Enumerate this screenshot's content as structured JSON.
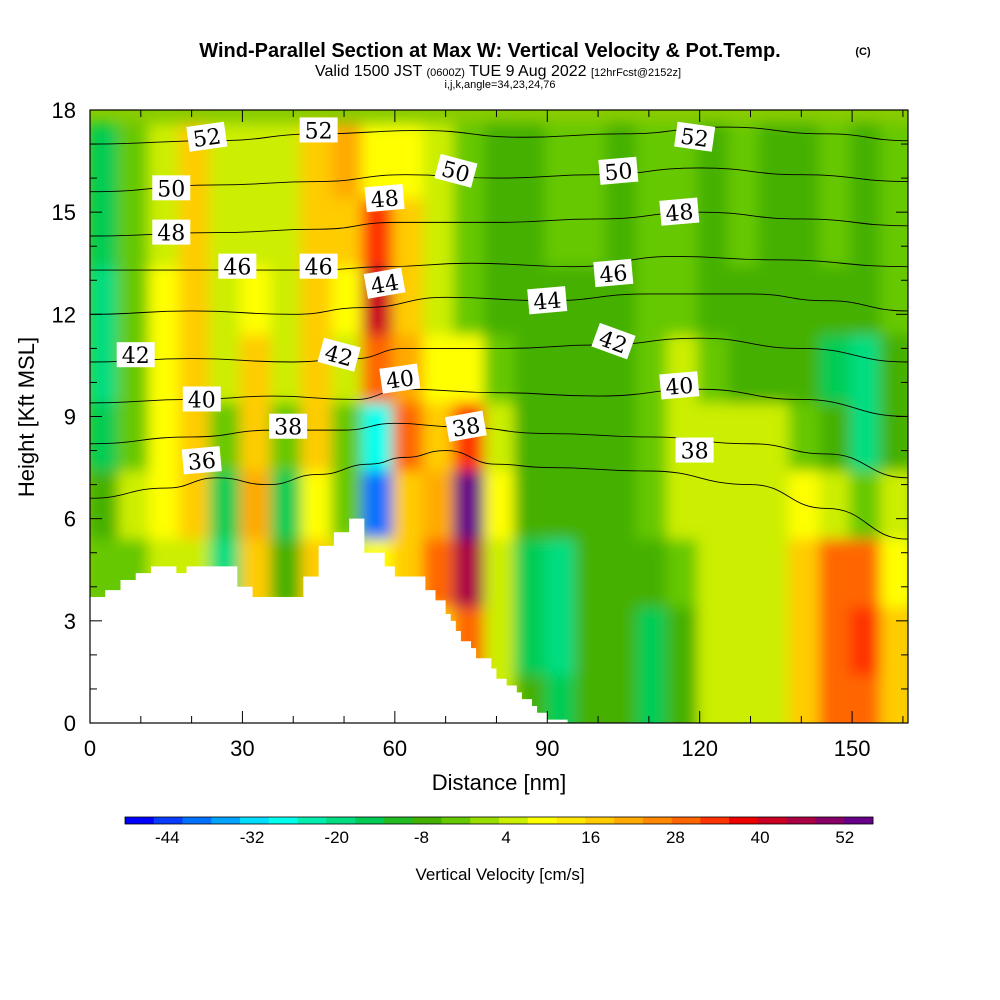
{
  "chart_data": {
    "type": "heatmap",
    "title": "Wind-Parallel Section at Max W: Vertical Velocity & Pot.Temp.",
    "title_suffix": "(C)",
    "subtitle_parts": [
      "Valid 1500 JST",
      "(0600Z)",
      "TUE 9 Aug 2022",
      "[12hrFcst@2152z]"
    ],
    "subtitle2": "i,j,k,angle=34,23,24,76",
    "xlabel": "Distance [nm]",
    "ylabel": "Height [Kft MSL]",
    "xlim": [
      0,
      161
    ],
    "ylim": [
      0,
      18
    ],
    "x_ticks": [
      "0",
      "30",
      "60",
      "90",
      "120",
      "150"
    ],
    "y_ticks": [
      "0",
      "3",
      "6",
      "9",
      "12",
      "15",
      "18"
    ],
    "grid": false,
    "colorbar": {
      "label": "Vertical Velocity [cm/s]",
      "tick_labels": [
        "-44",
        "-32",
        "-20",
        "-8",
        "4",
        "16",
        "28",
        "40",
        "52"
      ],
      "min": -50,
      "max": 56,
      "colors": [
        "#0000ff",
        "#0a3cff",
        "#0070ff",
        "#00a4ff",
        "#00ddff",
        "#00ffee",
        "#00eeb0",
        "#00dd80",
        "#00cc55",
        "#22bb22",
        "#44b000",
        "#66c800",
        "#99dd00",
        "#ccee00",
        "#ffff00",
        "#ffe800",
        "#ffcc00",
        "#ffaa00",
        "#ff8800",
        "#ff6600",
        "#ff3300",
        "#ee0000",
        "#cc0022",
        "#aa0044",
        "#880066",
        "#660088"
      ]
    },
    "heatmap_cells_x": [
      0,
      6,
      12,
      18,
      24,
      30,
      36,
      42,
      48,
      54,
      60,
      66,
      72,
      78,
      84,
      90,
      96,
      102,
      108,
      114,
      120,
      126,
      132,
      138,
      144,
      150,
      156
    ],
    "heatmap_cells_z": [
      0.5,
      2.5,
      4.5,
      6.5,
      8.5,
      10.5,
      12.5,
      14.5,
      16.5
    ],
    "vertical_velocity": [
      [
        4,
        4,
        4,
        4,
        4,
        4,
        4,
        4,
        4,
        4,
        4,
        4,
        16,
        4,
        -8,
        -14,
        -8,
        -8,
        -14,
        -8,
        4,
        4,
        4,
        16,
        28,
        28,
        16
      ],
      [
        4,
        4,
        4,
        4,
        4,
        4,
        4,
        4,
        4,
        4,
        4,
        16,
        28,
        4,
        -14,
        -20,
        -8,
        -8,
        -14,
        -8,
        4,
        4,
        4,
        16,
        28,
        34,
        16
      ],
      [
        -2,
        -2,
        4,
        4,
        -20,
        16,
        -8,
        16,
        4,
        10,
        16,
        28,
        46,
        4,
        -14,
        -20,
        -8,
        -8,
        -8,
        -2,
        4,
        4,
        4,
        16,
        28,
        28,
        10
      ],
      [
        -8,
        4,
        10,
        16,
        -14,
        22,
        -14,
        10,
        -2,
        -38,
        16,
        22,
        52,
        10,
        -8,
        -8,
        -8,
        -8,
        -2,
        4,
        4,
        4,
        4,
        10,
        4,
        -2,
        4
      ],
      [
        -14,
        -2,
        10,
        16,
        -2,
        16,
        -2,
        16,
        -2,
        -26,
        28,
        16,
        34,
        4,
        -8,
        -8,
        -8,
        -8,
        -2,
        4,
        4,
        4,
        4,
        -2,
        -8,
        -20,
        -8
      ],
      [
        -20,
        -2,
        10,
        16,
        4,
        16,
        4,
        16,
        4,
        28,
        22,
        10,
        10,
        -2,
        -8,
        -8,
        -8,
        -8,
        -2,
        4,
        -2,
        -8,
        -8,
        -8,
        -14,
        -20,
        -8
      ],
      [
        -20,
        -2,
        10,
        16,
        4,
        10,
        4,
        16,
        10,
        40,
        16,
        4,
        -2,
        -8,
        -8,
        -8,
        -8,
        -8,
        -2,
        -2,
        -8,
        -8,
        -8,
        -8,
        -8,
        -8,
        -2
      ],
      [
        -14,
        -2,
        4,
        16,
        4,
        4,
        4,
        16,
        16,
        34,
        16,
        4,
        -2,
        -8,
        -8,
        -2,
        -2,
        -8,
        -2,
        -2,
        -8,
        -2,
        -8,
        -8,
        -2,
        -8,
        -2
      ],
      [
        -14,
        -2,
        4,
        16,
        4,
        4,
        4,
        16,
        22,
        10,
        10,
        4,
        -2,
        -8,
        -8,
        -2,
        -2,
        -8,
        -2,
        -2,
        -8,
        -2,
        -8,
        -8,
        -2,
        -8,
        -2
      ]
    ],
    "terrain": {
      "x": [
        0,
        3,
        3,
        6,
        6,
        9,
        9,
        12,
        12,
        17,
        17,
        19,
        19,
        29,
        29,
        32,
        32,
        42,
        42,
        45,
        45,
        48,
        48,
        51,
        51,
        54,
        54,
        58,
        58,
        60,
        60,
        66,
        66,
        68,
        68,
        70,
        70,
        71,
        71,
        72,
        72,
        73,
        73,
        75,
        75,
        76,
        76,
        79,
        79,
        80,
        80,
        82,
        82,
        84,
        84,
        85,
        85,
        87,
        87,
        88,
        88,
        90,
        90,
        94,
        94,
        161
      ],
      "z": [
        3.7,
        3.7,
        3.9,
        3.9,
        4.2,
        4.2,
        4.4,
        4.4,
        4.6,
        4.6,
        4.4,
        4.4,
        4.6,
        4.6,
        4.0,
        4.0,
        3.7,
        3.7,
        4.3,
        4.3,
        5.2,
        5.2,
        5.6,
        5.6,
        6.0,
        6.0,
        5.0,
        5.0,
        4.6,
        4.6,
        4.3,
        4.3,
        3.9,
        3.9,
        3.6,
        3.6,
        3.2,
        3.2,
        3.0,
        3.0,
        2.7,
        2.7,
        2.4,
        2.4,
        2.2,
        2.2,
        1.9,
        1.9,
        1.6,
        1.6,
        1.3,
        1.3,
        1.1,
        1.1,
        0.9,
        0.9,
        0.7,
        0.7,
        0.5,
        0.5,
        0.3,
        0.3,
        0.1,
        0.1,
        0,
        0
      ]
    },
    "isentropes": [
      {
        "level": 36,
        "pts": [
          [
            0,
            6.6
          ],
          [
            15,
            6.9
          ],
          [
            25,
            7.2
          ],
          [
            35,
            7.0
          ],
          [
            45,
            7.3
          ],
          [
            55,
            7.6
          ],
          [
            62,
            7.8
          ],
          [
            70,
            8.0
          ],
          [
            80,
            7.6
          ],
          [
            90,
            7.5
          ],
          [
            110,
            7.4
          ],
          [
            130,
            7.0
          ],
          [
            145,
            6.3
          ],
          [
            161,
            5.4
          ]
        ]
      },
      {
        "level": 38,
        "pts": [
          [
            0,
            8.2
          ],
          [
            20,
            8.4
          ],
          [
            36,
            8.6
          ],
          [
            50,
            8.6
          ],
          [
            60,
            8.8
          ],
          [
            72,
            8.7
          ],
          [
            90,
            8.5
          ],
          [
            110,
            8.4
          ],
          [
            130,
            8.2
          ],
          [
            145,
            7.9
          ],
          [
            161,
            7.2
          ]
        ]
      },
      {
        "level": 40,
        "pts": [
          [
            0,
            9.4
          ],
          [
            20,
            9.5
          ],
          [
            36,
            9.6
          ],
          [
            52,
            9.5
          ],
          [
            62,
            9.8
          ],
          [
            80,
            9.7
          ],
          [
            100,
            9.6
          ],
          [
            120,
            9.8
          ],
          [
            140,
            9.5
          ],
          [
            161,
            9.0
          ]
        ]
      },
      {
        "level": 42,
        "pts": [
          [
            0,
            10.6
          ],
          [
            20,
            10.7
          ],
          [
            40,
            10.6
          ],
          [
            52,
            10.7
          ],
          [
            62,
            11.0
          ],
          [
            82,
            11.0
          ],
          [
            100,
            11.1
          ],
          [
            120,
            11.3
          ],
          [
            140,
            11.0
          ],
          [
            161,
            10.6
          ]
        ]
      },
      {
        "level": 44,
        "pts": [
          [
            0,
            12.0
          ],
          [
            20,
            12.1
          ],
          [
            40,
            12.0
          ],
          [
            54,
            12.2
          ],
          [
            70,
            12.5
          ],
          [
            90,
            12.4
          ],
          [
            110,
            12.6
          ],
          [
            130,
            12.6
          ],
          [
            145,
            12.4
          ],
          [
            161,
            12.1
          ]
        ]
      },
      {
        "level": 46,
        "pts": [
          [
            0,
            13.3
          ],
          [
            25,
            13.3
          ],
          [
            45,
            13.3
          ],
          [
            58,
            13.4
          ],
          [
            75,
            13.5
          ],
          [
            95,
            13.4
          ],
          [
            115,
            13.7
          ],
          [
            135,
            13.6
          ],
          [
            161,
            13.4
          ]
        ]
      },
      {
        "level": 48,
        "pts": [
          [
            0,
            14.3
          ],
          [
            25,
            14.4
          ],
          [
            45,
            14.5
          ],
          [
            60,
            14.7
          ],
          [
            80,
            14.7
          ],
          [
            100,
            14.8
          ],
          [
            120,
            15.0
          ],
          [
            140,
            14.8
          ],
          [
            161,
            14.6
          ]
        ]
      },
      {
        "level": 50,
        "pts": [
          [
            0,
            15.6
          ],
          [
            25,
            15.8
          ],
          [
            45,
            15.9
          ],
          [
            62,
            16.1
          ],
          [
            80,
            16.0
          ],
          [
            100,
            16.1
          ],
          [
            120,
            16.3
          ],
          [
            140,
            16.1
          ],
          [
            161,
            15.9
          ]
        ]
      },
      {
        "level": 52,
        "pts": [
          [
            0,
            17.0
          ],
          [
            25,
            17.1
          ],
          [
            45,
            17.3
          ],
          [
            65,
            17.4
          ],
          [
            85,
            17.2
          ],
          [
            105,
            17.3
          ],
          [
            125,
            17.5
          ],
          [
            145,
            17.3
          ],
          [
            161,
            17.1
          ]
        ]
      }
    ],
    "contour_labels": [
      {
        "text": "52",
        "x": 23,
        "z": 17.2,
        "angle": -8
      },
      {
        "text": "52",
        "x": 45,
        "z": 17.4,
        "angle": 0
      },
      {
        "text": "52",
        "x": 119,
        "z": 17.2,
        "angle": 8
      },
      {
        "text": "50",
        "x": 16,
        "z": 15.7,
        "angle": 0
      },
      {
        "text": "50",
        "x": 72,
        "z": 16.2,
        "angle": 15
      },
      {
        "text": "50",
        "x": 104,
        "z": 16.2,
        "angle": -5
      },
      {
        "text": "48",
        "x": 16,
        "z": 14.4,
        "angle": 0
      },
      {
        "text": "48",
        "x": 58,
        "z": 15.4,
        "angle": -5
      },
      {
        "text": "48",
        "x": 116,
        "z": 15.0,
        "angle": -5
      },
      {
        "text": "46",
        "x": 29,
        "z": 13.4,
        "angle": 0
      },
      {
        "text": "46",
        "x": 45,
        "z": 13.4,
        "angle": 0
      },
      {
        "text": "46",
        "x": 103,
        "z": 13.2,
        "angle": -5
      },
      {
        "text": "44",
        "x": 58,
        "z": 12.9,
        "angle": -10
      },
      {
        "text": "44",
        "x": 90,
        "z": 12.4,
        "angle": -5
      },
      {
        "text": "42",
        "x": 9,
        "z": 10.8,
        "angle": 0
      },
      {
        "text": "42",
        "x": 49,
        "z": 10.8,
        "angle": 15
      },
      {
        "text": "42",
        "x": 103,
        "z": 11.2,
        "angle": 20
      },
      {
        "text": "40",
        "x": 22,
        "z": 9.5,
        "angle": 0
      },
      {
        "text": "40",
        "x": 61,
        "z": 10.1,
        "angle": -8
      },
      {
        "text": "40",
        "x": 116,
        "z": 9.9,
        "angle": -5
      },
      {
        "text": "38",
        "x": 39,
        "z": 8.7,
        "angle": 0
      },
      {
        "text": "38",
        "x": 74,
        "z": 8.7,
        "angle": -10
      },
      {
        "text": "38",
        "x": 119,
        "z": 8.0,
        "angle": 0
      },
      {
        "text": "36",
        "x": 22,
        "z": 7.7,
        "angle": -5
      }
    ]
  }
}
